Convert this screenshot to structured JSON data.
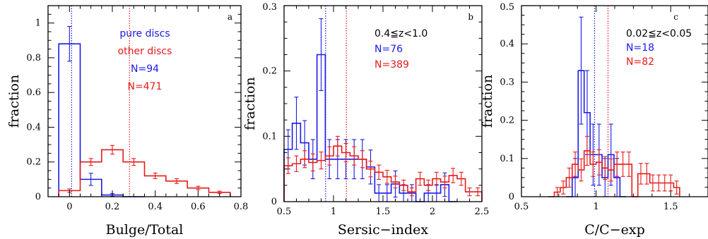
{
  "colors": {
    "blue": "#1a1ae6",
    "red": "#e61a1a",
    "black": "#000000"
  },
  "chart_data": [
    {
      "type": "histogram",
      "panel": "a",
      "xlabel": "Bulge/Total",
      "ylabel": "fraction",
      "xlim": [
        -0.1,
        0.8
      ],
      "ylim": [
        0,
        1.1
      ],
      "xticks": [
        0,
        0.2,
        0.4,
        0.6,
        0.8
      ],
      "xtick_labels": [
        "0",
        "0.2",
        "0.4",
        "0.6",
        "0.8"
      ],
      "yticks": [
        0,
        0.2,
        0.4,
        0.6,
        0.8,
        1
      ],
      "ytick_labels": [
        "0",
        "0.2",
        "0.4",
        "0.6",
        "0.8",
        "1"
      ],
      "annotations": [
        {
          "text": "pure discs",
          "color": "blue"
        },
        {
          "text": "other discs",
          "color": "red"
        },
        {
          "text": "N=94",
          "color": "blue"
        },
        {
          "text": "N=471",
          "color": "red"
        }
      ],
      "vlines": [
        {
          "x": 0.01,
          "color": "blue"
        },
        {
          "x": 0.28,
          "color": "red"
        }
      ],
      "series": [
        {
          "color": "blue",
          "edges": [
            -0.05,
            0.05,
            0.15,
            0.25,
            0.35
          ],
          "values": [
            0.88,
            0.1,
            0.01,
            0.0
          ],
          "errors": [
            0.1,
            0.035,
            0.008,
            0.0
          ]
        },
        {
          "color": "red",
          "edges": [
            -0.05,
            0.05,
            0.15,
            0.25,
            0.35,
            0.45,
            0.55,
            0.65,
            0.75
          ],
          "values": [
            0.035,
            0.2,
            0.27,
            0.2,
            0.12,
            0.09,
            0.05,
            0.025
          ],
          "errors": [
            0.01,
            0.02,
            0.025,
            0.02,
            0.016,
            0.014,
            0.01,
            0.007
          ]
        }
      ]
    },
    {
      "type": "histogram",
      "panel": "b",
      "xlabel": "Sersic−index",
      "ylabel": "fraction",
      "xlim": [
        0.5,
        2.5
      ],
      "ylim": [
        0,
        0.3
      ],
      "xticks": [
        0.5,
        1,
        1.5,
        2,
        2.5
      ],
      "xtick_labels": [
        "0.5",
        "1",
        "1.5",
        "2",
        "2.5"
      ],
      "yticks": [
        0,
        0.1,
        0.2,
        0.3
      ],
      "ytick_labels": [
        "0",
        "0.1",
        "0.2",
        "0.3"
      ],
      "annotations": [
        {
          "text": "0.4≦z<1.0",
          "color": "black"
        },
        {
          "text": "N=76",
          "color": "blue"
        },
        {
          "text": "N=389",
          "color": "red"
        }
      ],
      "vlines": [
        {
          "x": 0.92,
          "color": "blue"
        },
        {
          "x": 1.13,
          "color": "red"
        }
      ],
      "series": [
        {
          "color": "blue",
          "edges": [
            0.5,
            0.583,
            0.667,
            0.75,
            0.833,
            0.917,
            1.0,
            1.083,
            1.167,
            1.25,
            1.333,
            1.417,
            1.5,
            1.583,
            1.667,
            1.75,
            1.833,
            1.917,
            2.0,
            2.083,
            2.167,
            2.25
          ],
          "values": [
            0.08,
            0.12,
            0.09,
            0.065,
            0.225,
            0.065,
            0.065,
            0.065,
            0.065,
            0.065,
            0.053,
            0.013,
            0.013,
            0.027,
            0.013,
            0.013,
            0.0,
            0.013,
            0.013,
            0.026,
            0.0
          ],
          "errors": [
            0.03,
            0.04,
            0.034,
            0.03,
            0.055,
            0.03,
            0.03,
            0.03,
            0.03,
            0.03,
            0.026,
            0.013,
            0.013,
            0.02,
            0.013,
            0.013,
            0.0,
            0.013,
            0.013,
            0.018,
            0.0
          ]
        },
        {
          "color": "red",
          "edges": [
            0.5,
            0.583,
            0.667,
            0.75,
            0.833,
            0.917,
            1.0,
            1.083,
            1.167,
            1.25,
            1.333,
            1.417,
            1.5,
            1.583,
            1.667,
            1.75,
            1.833,
            1.917,
            2.0,
            2.083,
            2.167,
            2.25,
            2.333,
            2.417,
            2.5
          ],
          "values": [
            0.055,
            0.058,
            0.065,
            0.06,
            0.063,
            0.07,
            0.085,
            0.075,
            0.07,
            0.065,
            0.05,
            0.045,
            0.038,
            0.03,
            0.025,
            0.015,
            0.035,
            0.025,
            0.035,
            0.03,
            0.04,
            0.035,
            0.015,
            0.015
          ],
          "errors": [
            0.012,
            0.012,
            0.013,
            0.013,
            0.013,
            0.014,
            0.015,
            0.014,
            0.014,
            0.013,
            0.012,
            0.011,
            0.01,
            0.009,
            0.008,
            0.006,
            0.01,
            0.008,
            0.01,
            0.009,
            0.011,
            0.01,
            0.006,
            0.006
          ]
        }
      ]
    },
    {
      "type": "histogram",
      "panel": "c",
      "xlabel": "C/C−exp",
      "ylabel": "fraction",
      "xlim": [
        0.5,
        1.75
      ],
      "ylim": [
        0,
        0.5
      ],
      "xticks": [
        0.5,
        1,
        1.5
      ],
      "xtick_labels": [
        "0.5",
        "1",
        "1.5"
      ],
      "yticks": [
        0,
        0.1,
        0.2,
        0.3,
        0.4,
        0.5
      ],
      "ytick_labels": [
        "0",
        "0.1",
        "0.2",
        "0.3",
        "0.4",
        "0.5"
      ],
      "annotations": [
        {
          "text": "0.02≦z<0.05",
          "color": "black"
        },
        {
          "text": "N=18",
          "color": "blue"
        },
        {
          "text": "N=82",
          "color": "red"
        }
      ],
      "vlines": [
        {
          "x": 0.99,
          "color": "blue"
        },
        {
          "x": 1.08,
          "color": "red"
        }
      ],
      "series": [
        {
          "color": "blue",
          "edges": [
            0.8,
            0.84,
            0.88,
            0.92,
            0.96,
            1.0,
            1.04,
            1.08,
            1.12,
            1.16,
            1.2
          ],
          "values": [
            0.0,
            0.05,
            0.33,
            0.22,
            0.11,
            0.11,
            0.05,
            0.11,
            0.05,
            0.0
          ],
          "errors": [
            0.0,
            0.05,
            0.14,
            0.11,
            0.08,
            0.08,
            0.05,
            0.08,
            0.05,
            0.0
          ]
        },
        {
          "color": "red",
          "edges": [
            0.68,
            0.72,
            0.76,
            0.8,
            0.84,
            0.88,
            0.92,
            0.96,
            1.0,
            1.04,
            1.08,
            1.12,
            1.16,
            1.2,
            1.24,
            1.28,
            1.32,
            1.36,
            1.4,
            1.44,
            1.48,
            1.52,
            1.56
          ],
          "values": [
            0.0,
            0.012,
            0.024,
            0.05,
            0.085,
            0.07,
            0.12,
            0.085,
            0.09,
            0.075,
            0.07,
            0.085,
            0.085,
            0.085,
            0.0,
            0.06,
            0.06,
            0.036,
            0.036,
            0.036,
            0.036,
            0.024
          ],
          "errors": [
            0.0,
            0.012,
            0.017,
            0.025,
            0.032,
            0.029,
            0.038,
            0.032,
            0.033,
            0.03,
            0.029,
            0.032,
            0.032,
            0.032,
            0.0,
            0.027,
            0.027,
            0.021,
            0.021,
            0.021,
            0.021,
            0.017
          ]
        }
      ]
    }
  ]
}
